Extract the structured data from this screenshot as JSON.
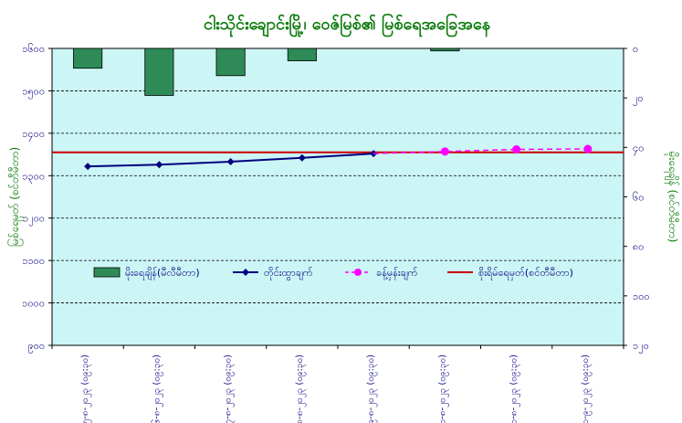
{
  "chart_data": {
    "type": "bar-line-combo",
    "title": "ငါးသိုင်းချောင်းမြို့၊ ဝေဇ်မြစ်၏ မြစ်ရေအခြေအနေ",
    "xlabel": "",
    "ylabel_left": "မြစ်ရေမှတ် (စင်တီမီတာ)",
    "ylabel_right": "မိုးရေချိန် (စင်တီမီတာ)",
    "ylim_left": [
      900,
      1600
    ],
    "yticks_left": [
      "၁၆၀၀",
      "၁၅၀၀",
      "၁၄၀၀",
      "၁၃၀၀",
      "၁၂၀၀",
      "၁၁၀၀",
      "၁၀၀၀",
      "၉၀၀"
    ],
    "ylim_right": [
      0,
      120
    ],
    "yticks_right": [
      "၀",
      "၂၀",
      "၄၀",
      "၆၀",
      "၈၀",
      "၁၀၀",
      "၁၂၀"
    ],
    "categories": [
      "၂၅-၈-၂၀၂၃ (၀၉:၃၀)",
      "၂၆-၈-၂၀၂၃ (၀၉:၃၀)",
      "၂၇-၈-၂၀၂၃ (၀၉:၃၀)",
      "၂၈-၈-၂၀၂၃ (၀၉:၃၀)",
      "၂၉-၈-၂၀၂၃ (၀၉:၃၀)",
      "၃၀-၈-၂၀၂၃ (၀၉:၃၀)",
      "၃၁-၈-၂၀၂၃ (၀၉:၃၀)",
      "၁-၉-၂၀၂၃ (၀၉:၃၀)"
    ],
    "series": [
      {
        "name": "မိုးရေချိန်(မီလီမီတာ)",
        "kind": "bar",
        "axis": "right",
        "color": "#2e8b57",
        "values": [
          8,
          19,
          11,
          5,
          null,
          1,
          null,
          null
        ]
      },
      {
        "name": "တိုင်းထွာချက်",
        "kind": "line",
        "axis": "left",
        "color": "#000080",
        "values": [
          1322,
          1326,
          1333,
          1342,
          1352,
          null,
          null,
          null
        ]
      },
      {
        "name": "ခန့်မှန်းချက်",
        "kind": "line-dashed",
        "axis": "left",
        "color": "#ff00ff",
        "values": [
          null,
          null,
          null,
          null,
          1352,
          1357,
          1362,
          1363
        ]
      },
      {
        "name": "စိုးရိမ်ရေမှတ်(စင်တီမီတာ)",
        "kind": "hline",
        "axis": "left",
        "color": "#cc0000",
        "value": 1355
      }
    ],
    "grid": true,
    "legend": "inside-center"
  }
}
